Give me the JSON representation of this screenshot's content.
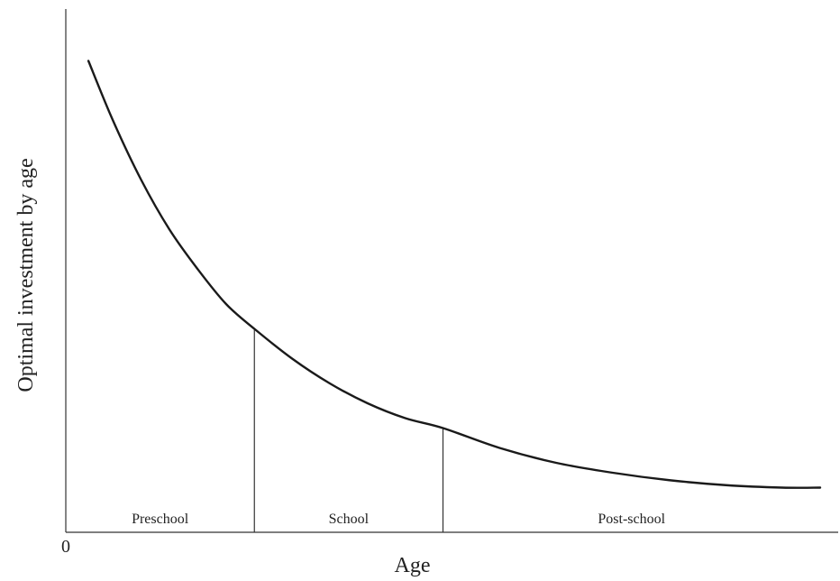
{
  "chart_data": {
    "type": "line",
    "title": "",
    "xlabel": "Age",
    "ylabel": "Optimal investment by age",
    "x_tick_labels": [
      "0"
    ],
    "grid": false,
    "legend": "none",
    "regions": [
      {
        "label": "Preschool",
        "x_start": 0,
        "x_end": 1
      },
      {
        "label": "School",
        "x_start": 1,
        "x_end": 2
      },
      {
        "label": "Post-school",
        "x_start": 2,
        "x_end": 4
      }
    ],
    "xlim": [
      0,
      4
    ],
    "ylim": [
      0,
      1
    ],
    "series": [
      {
        "values_x": [
          0.12,
          0.25,
          0.4,
          0.55,
          0.7,
          0.85,
          1.0,
          1.2,
          1.4,
          1.6,
          1.8,
          2.0,
          2.3,
          2.6,
          2.9,
          3.2,
          3.5,
          3.8,
          4.0
        ],
        "values_y": [
          0.95,
          0.83,
          0.71,
          0.61,
          0.53,
          0.46,
          0.41,
          0.35,
          0.3,
          0.26,
          0.23,
          0.21,
          0.17,
          0.14,
          0.12,
          0.105,
          0.095,
          0.09,
          0.09
        ],
        "color": "#1a1a1a"
      }
    ],
    "dividers": [
      1,
      2
    ]
  }
}
